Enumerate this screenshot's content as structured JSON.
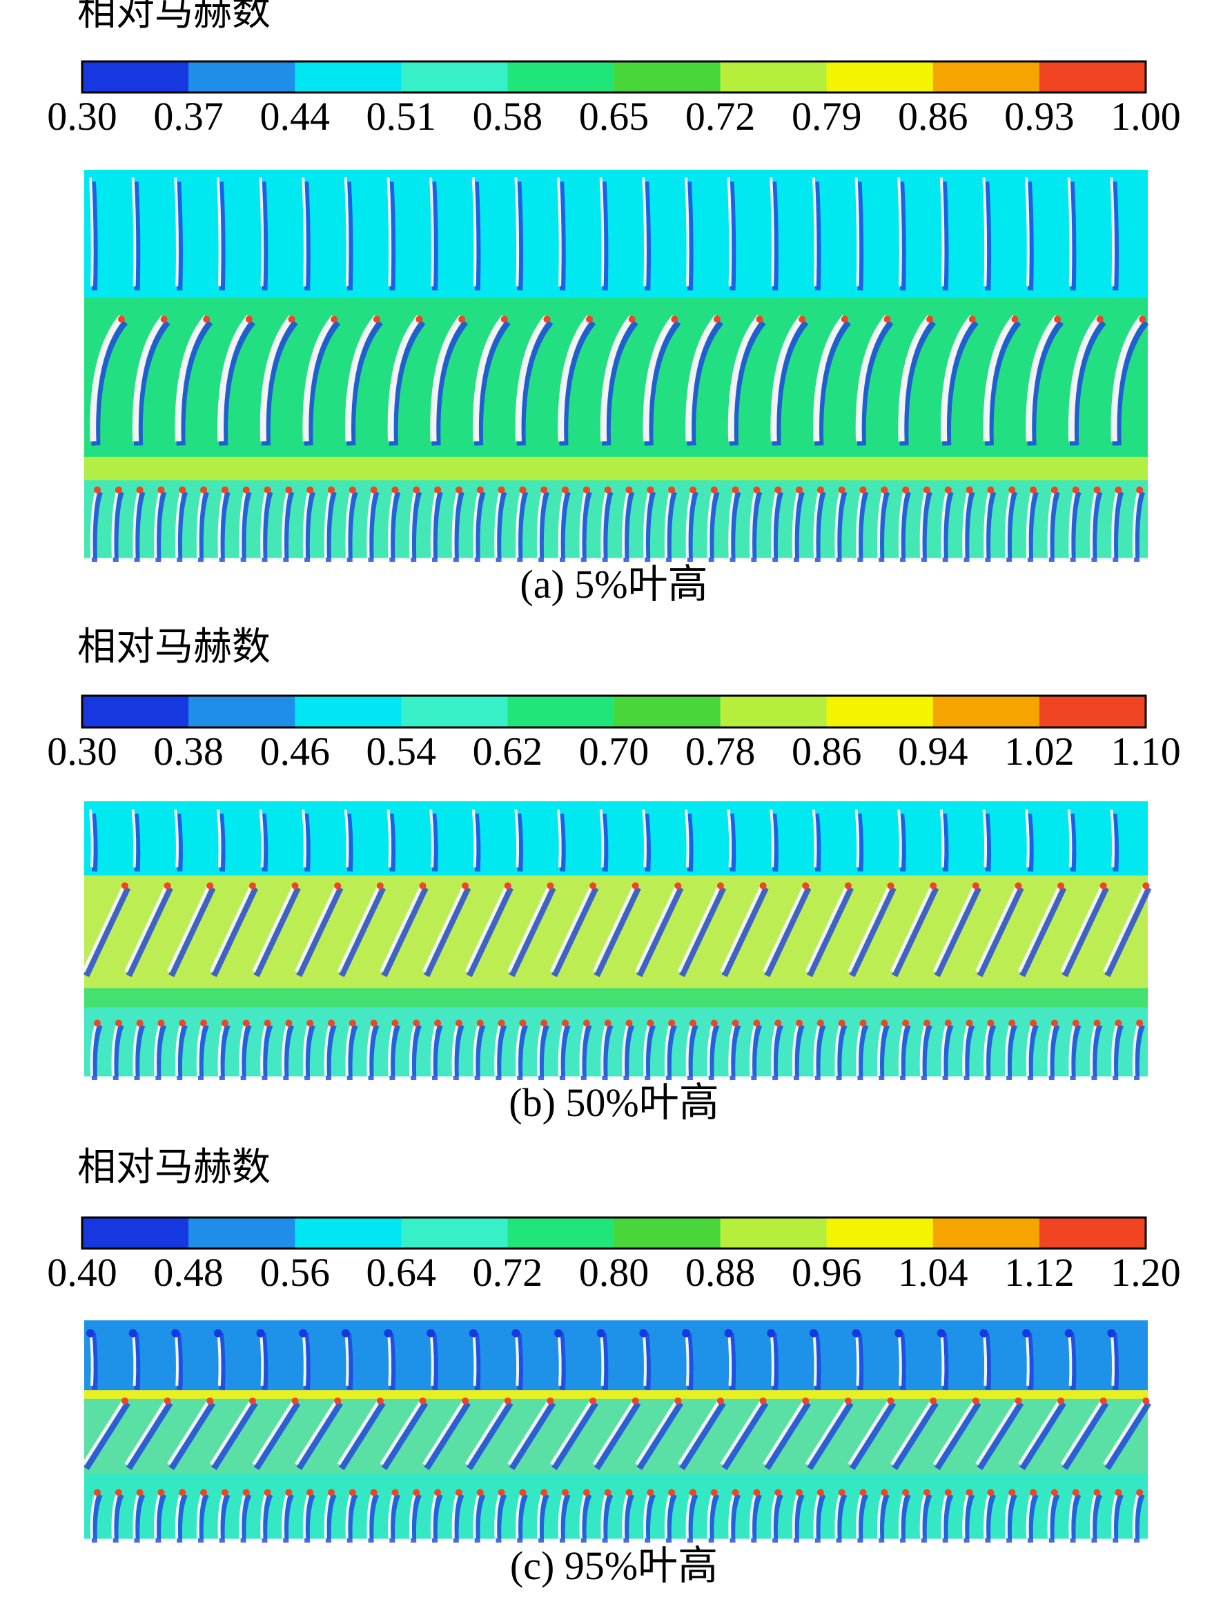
{
  "panels": [
    {
      "colorbar_title": "相对马赫数",
      "ticks": [
        "0.30",
        "0.37",
        "0.44",
        "0.51",
        "0.58",
        "0.65",
        "0.72",
        "0.79",
        "0.86",
        "0.93",
        "1.00"
      ],
      "caption": "(a) 5%叶高"
    },
    {
      "colorbar_title": "相对马赫数",
      "ticks": [
        "0.30",
        "0.38",
        "0.46",
        "0.54",
        "0.62",
        "0.70",
        "0.78",
        "0.86",
        "0.94",
        "1.02",
        "1.10"
      ],
      "caption": "(b) 50%叶高"
    },
    {
      "colorbar_title": "相对马赫数",
      "ticks": [
        "0.40",
        "0.48",
        "0.56",
        "0.64",
        "0.72",
        "0.80",
        "0.88",
        "0.96",
        "1.04",
        "1.12",
        "1.20"
      ],
      "caption": "(c) 95%叶高"
    }
  ]
}
